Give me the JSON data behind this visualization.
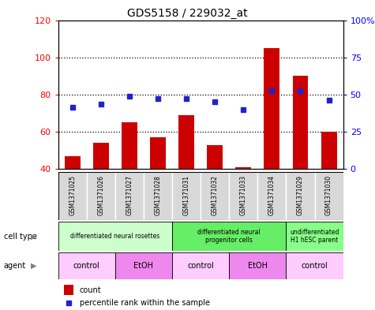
{
  "title": "GDS5158 / 229032_at",
  "samples": [
    "GSM1371025",
    "GSM1371026",
    "GSM1371027",
    "GSM1371028",
    "GSM1371031",
    "GSM1371032",
    "GSM1371033",
    "GSM1371034",
    "GSM1371029",
    "GSM1371030"
  ],
  "counts": [
    47,
    54,
    65,
    57,
    69,
    53,
    41,
    105,
    90,
    60
  ],
  "percentile_ranks_left": [
    73,
    75,
    79,
    78,
    78,
    76,
    72,
    82,
    82,
    77
  ],
  "y_min": 40,
  "y_max": 120,
  "y_ticks": [
    40,
    60,
    80,
    100,
    120
  ],
  "right_y_ticks": [
    0,
    25,
    50,
    75,
    100
  ],
  "right_y_tick_labels": [
    "0",
    "25",
    "50",
    "75",
    "100%"
  ],
  "bar_color": "#cc0000",
  "dot_color": "#2222cc",
  "bar_width": 0.55,
  "cell_type_groups": [
    {
      "label": "differentiated neural rosettes",
      "start": 0,
      "end": 4,
      "color": "#ccffcc"
    },
    {
      "label": "differentiated neural\nprogenitor cells",
      "start": 4,
      "end": 8,
      "color": "#66ee66"
    },
    {
      "label": "undifferentiated\nH1 hESC parent",
      "start": 8,
      "end": 10,
      "color": "#88ff88"
    }
  ],
  "agent_groups": [
    {
      "label": "control",
      "start": 0,
      "end": 2,
      "color": "#ffccff"
    },
    {
      "label": "EtOH",
      "start": 2,
      "end": 4,
      "color": "#ee88ee"
    },
    {
      "label": "control",
      "start": 4,
      "end": 6,
      "color": "#ffccff"
    },
    {
      "label": "EtOH",
      "start": 6,
      "end": 8,
      "color": "#ee88ee"
    },
    {
      "label": "control",
      "start": 8,
      "end": 10,
      "color": "#ffccff"
    }
  ],
  "cell_type_label": "cell type",
  "agent_label": "agent",
  "legend_count": "count",
  "legend_percentile": "percentile rank within the sample",
  "sample_bg_color": "#d8d8d8",
  "sample_edge_color": "#ffffff"
}
